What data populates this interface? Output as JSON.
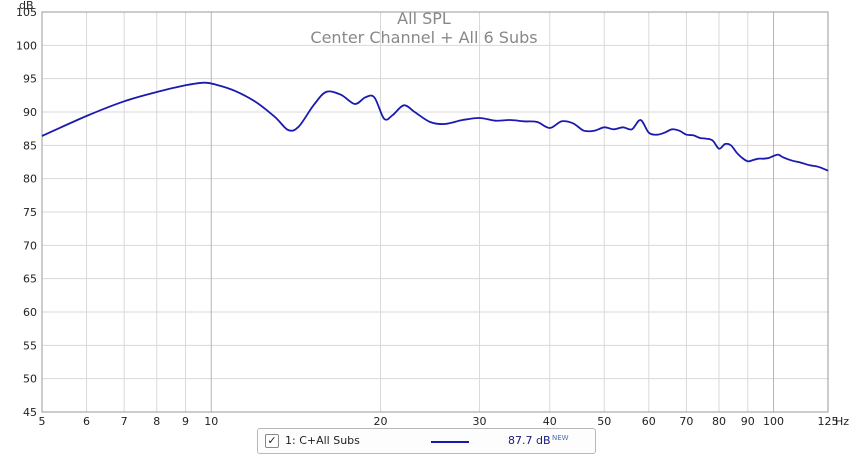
{
  "chart_data": {
    "type": "line",
    "title": "All SPL",
    "subtitle": "Center Channel + All 6 Subs",
    "ylabel": "dB",
    "xunit": "Hz",
    "xscale": "log",
    "xlim": [
      5,
      125
    ],
    "ylim": [
      45,
      105
    ],
    "yticks": [
      45,
      50,
      55,
      60,
      65,
      70,
      75,
      80,
      85,
      90,
      95,
      100,
      105
    ],
    "xticks": [
      5,
      6,
      7,
      8,
      9,
      10,
      20,
      30,
      40,
      50,
      60,
      70,
      80,
      90,
      100,
      125
    ],
    "xticks_major": [
      10,
      100
    ],
    "grid": true,
    "line_color": "#1a1ab0",
    "series": [
      {
        "name": "1: C+All Subs",
        "x": [
          5,
          6,
          7,
          8,
          9,
          9.7,
          10.2,
          11,
          12,
          13,
          13.7,
          14.3,
          15.2,
          16,
          17,
          18,
          18.8,
          19.5,
          20.3,
          21,
          22,
          23,
          24.5,
          26,
          28,
          30,
          32,
          34,
          36,
          38,
          40,
          42,
          44,
          46,
          48,
          50,
          52,
          54,
          56,
          58,
          60,
          62,
          64,
          66,
          68,
          70,
          72,
          74,
          76,
          78,
          80,
          82,
          84,
          86,
          88,
          90,
          92,
          94,
          96,
          98,
          100,
          102,
          104,
          108,
          112,
          116,
          120,
          125
        ],
        "y": [
          86.4,
          89.4,
          91.6,
          93.0,
          94.0,
          94.4,
          94.1,
          93.2,
          91.5,
          89.2,
          87.3,
          87.8,
          91.0,
          93.0,
          92.6,
          91.2,
          92.2,
          92.2,
          89.0,
          89.5,
          91.0,
          90.0,
          88.5,
          88.2,
          88.8,
          89.1,
          88.7,
          88.8,
          88.6,
          88.5,
          87.6,
          88.6,
          88.3,
          87.2,
          87.2,
          87.7,
          87.4,
          87.7,
          87.4,
          88.8,
          86.9,
          86.6,
          86.9,
          87.4,
          87.2,
          86.6,
          86.5,
          86.1,
          86.0,
          85.7,
          84.5,
          85.2,
          85.0,
          83.9,
          83.1,
          82.6,
          82.8,
          83.0,
          83.0,
          83.1,
          83.4,
          83.6,
          83.2,
          82.7,
          82.4,
          82.0,
          81.8,
          81.2
        ]
      }
    ]
  },
  "legend": {
    "checkbox": "✓",
    "name": "1: C+All Subs",
    "value": "87.7 dB",
    "badge": "NEW"
  }
}
